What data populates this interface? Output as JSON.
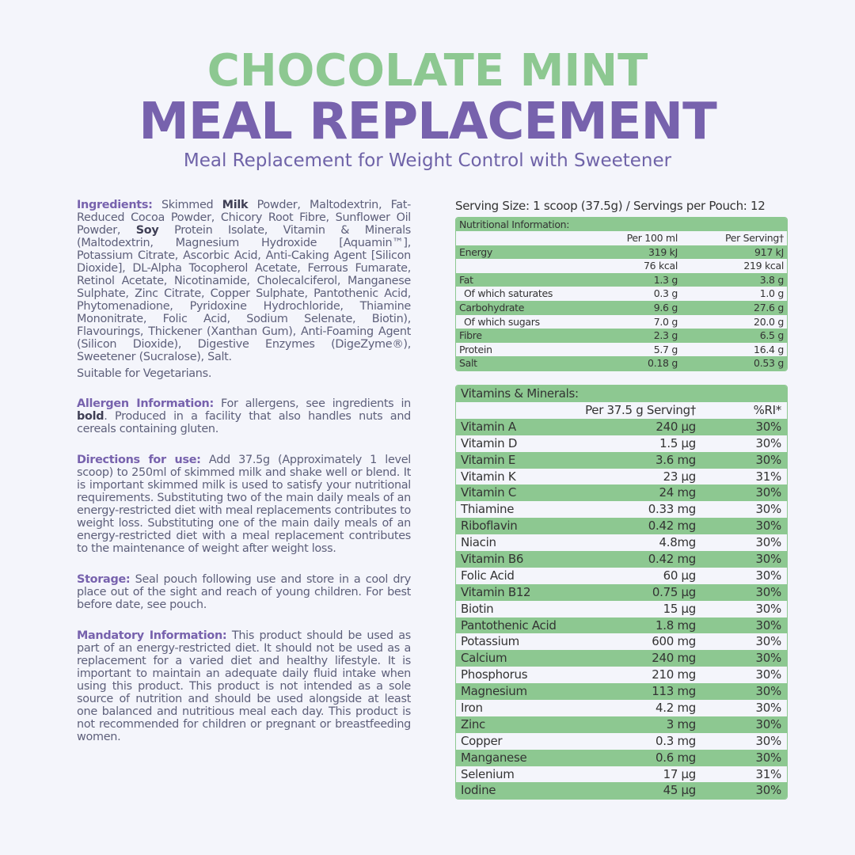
{
  "header": {
    "title_line1": "CHOCOLATE MINT",
    "title_line2": "MEAL REPLACEMENT",
    "subtitle": "Meal Replacement for Weight Control with Sweetener"
  },
  "ingredients": {
    "label": "Ingredients:",
    "t1": "Skimmed",
    "allergen1": "Milk",
    "t2": "Powder, Maltodextrin, Fat-Reduced Cocoa Powder, Chicory Root Fibre, Sunflower Oil Powder,",
    "allergen2": "Soy",
    "t3": "Protein Isolate, Vitamin & Minerals (Maltodextrin, Magnesium Hydroxide [Aquamin™], Potassium Citrate, Ascorbic Acid, Anti-Caking Agent [Silicon Dioxide], DL-Alpha Tocopherol Acetate, Ferrous Fumarate, Retinol Acetate, Nicotinamide, Cholecalciferol, Manganese Sulphate, Zinc Citrate, Copper Sulphate, Pantothenic Acid, Phytomenadione, Pyridoxine Hydrochloride, Thiamine Mononitrate, Folic Acid, Sodium Selenate, Biotin), Flavourings, Thickener (Xanthan Gum), Anti-Foaming Agent (Silicon Dioxide), Digestive Enzymes (DigeZyme®), Sweetener (Sucralose), Salt.",
    "vegetarian": "Suitable for Vegetarians."
  },
  "allergen": {
    "label": "Allergen Information:",
    "t1": "For allergens, see ingredients in",
    "bold": "bold",
    "t2": ". Produced in a facility that also handles nuts and cereals containing gluten."
  },
  "directions": {
    "label": "Directions for use:",
    "text": "Add 37.5g (Approximately 1 level scoop) to 250ml of skimmed milk and shake well or blend. It is important skimmed milk is used to satisfy your nutritional requirements. Substituting two of the main daily meals of an energy-restricted diet with meal replacements contributes to weight loss. Substituting one of the main daily meals of an energy-restricted diet with a meal replacement contributes to the maintenance of weight after weight loss."
  },
  "storage": {
    "label": "Storage:",
    "text": "Seal pouch following use and store in a cool dry place out of the sight and reach of young children. For best before date, see pouch."
  },
  "mandatory": {
    "label": "Mandatory Information:",
    "text": "This product should be used as part of an energy-restricted diet. It should not be used as a replacement for a varied diet and healthy lifestyle. It is important to maintain an adequate daily fluid intake when using this product. This product is not intended as a sole source of nutrition and should be used alongside at least one balanced and nutritious meal each day. This product is not recommended for children or pregnant or breastfeeding women."
  },
  "serving": "Serving Size: 1 scoop (37.5g) / Servings per Pouch: 12",
  "nutrition": {
    "title": "Nutritional Information:",
    "col_a": "Per 100 ml",
    "col_b": "Per Serving†",
    "rows": [
      {
        "name": "Energy",
        "a": "319 kJ",
        "b": "917 kJ"
      },
      {
        "name": "",
        "a": "76 kcal",
        "b": "219 kcal"
      },
      {
        "name": "Fat",
        "a": "1.3 g",
        "b": "3.8 g"
      },
      {
        "name": "Of which saturates",
        "a": "0.3 g",
        "b": "1.0 g"
      },
      {
        "name": "Carbohydrate",
        "a": "9.6 g",
        "b": "27.6 g"
      },
      {
        "name": "Of which sugars",
        "a": "7.0 g",
        "b": "20.0 g"
      },
      {
        "name": "Fibre",
        "a": "2.3 g",
        "b": "6.5 g"
      },
      {
        "name": "Protein",
        "a": "5.7 g",
        "b": "16.4 g"
      },
      {
        "name": "Salt",
        "a": "0.18 g",
        "b": "0.53 g"
      }
    ]
  },
  "vitamins": {
    "title": "Vitamins & Minerals:",
    "col_a": "Per 37.5 g Serving†",
    "col_b": "%RI*",
    "rows": [
      {
        "name": "Vitamin A",
        "a": "240 µg",
        "b": "30%"
      },
      {
        "name": "Vitamin D",
        "a": "1.5 µg",
        "b": "30%"
      },
      {
        "name": "Vitamin E",
        "a": "3.6 mg",
        "b": "30%"
      },
      {
        "name": "Vitamin K",
        "a": "23 µg",
        "b": "31%"
      },
      {
        "name": "Vitamin C",
        "a": "24 mg",
        "b": "30%"
      },
      {
        "name": "Thiamine",
        "a": "0.33 mg",
        "b": "30%"
      },
      {
        "name": "Riboflavin",
        "a": "0.42 mg",
        "b": "30%"
      },
      {
        "name": "Niacin",
        "a": "4.8mg",
        "b": "30%"
      },
      {
        "name": "Vitamin B6",
        "a": "0.42 mg",
        "b": "30%"
      },
      {
        "name": "Folic Acid",
        "a": "60 µg",
        "b": "30%"
      },
      {
        "name": "Vitamin B12",
        "a": "0.75 µg",
        "b": "30%"
      },
      {
        "name": "Biotin",
        "a": "15 µg",
        "b": "30%"
      },
      {
        "name": "Pantothenic Acid",
        "a": "1.8 mg",
        "b": "30%"
      },
      {
        "name": "Potassium",
        "a": "600 mg",
        "b": "30%"
      },
      {
        "name": "Calcium",
        "a": "240 mg",
        "b": "30%"
      },
      {
        "name": "Phosphorus",
        "a": "210 mg",
        "b": "30%"
      },
      {
        "name": "Magnesium",
        "a": "113 mg",
        "b": "30%"
      },
      {
        "name": "Iron",
        "a": "4.2 mg",
        "b": "30%"
      },
      {
        "name": "Zinc",
        "a": "3 mg",
        "b": "30%"
      },
      {
        "name": "Copper",
        "a": "0.3 mg",
        "b": "30%"
      },
      {
        "name": "Manganese",
        "a": "0.6 mg",
        "b": "30%"
      },
      {
        "name": "Selenium",
        "a": "17 µg",
        "b": "31%"
      },
      {
        "name": "Iodine",
        "a": "45 µg",
        "b": "30%"
      }
    ]
  }
}
